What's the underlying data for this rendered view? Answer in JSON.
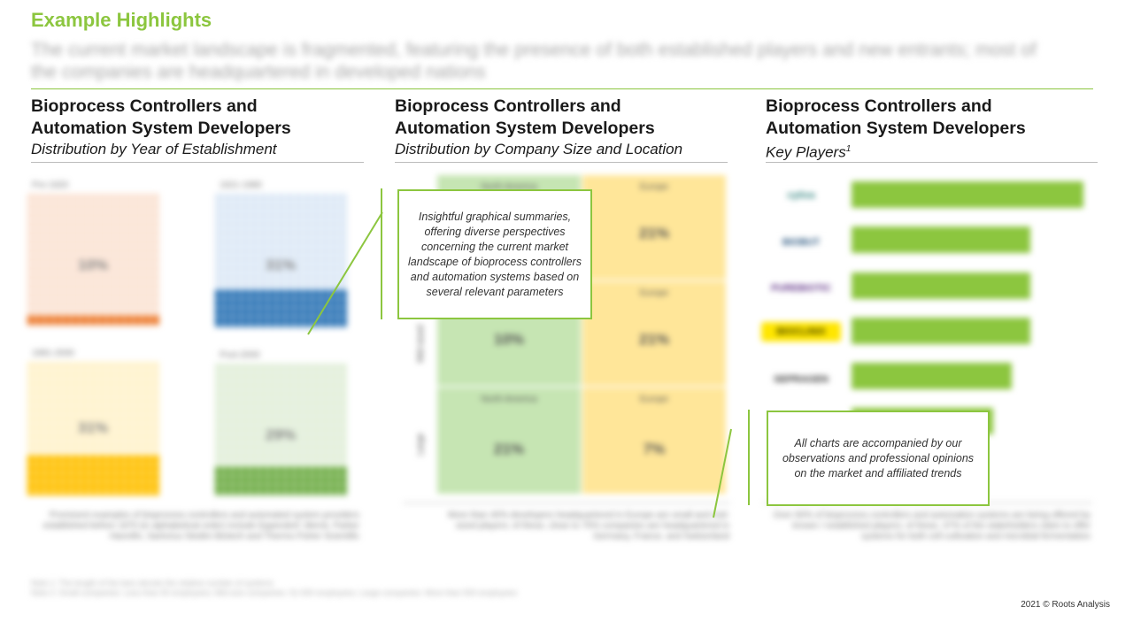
{
  "header": {
    "title": "Example Highlights",
    "subtitle": "The current market landscape is fragmented, featuring the presence of both established players and new entrants; most of the companies are headquartered in developed nations"
  },
  "columns": [
    {
      "heading": "Bioprocess Controllers and Automation System Developers",
      "subheading": "Distribution by Year of Establishment",
      "note": "Prominent examples of bioprocess controllers and automated system providers established before 1970 (in alphabetical order) include Eppendorf, Merck, Parker Hannifin, Sartorius Stedim Biotech and Thermo Fisher Scientific"
    },
    {
      "heading": "Bioprocess Controllers and Automation System Developers",
      "subheading": "Distribution by Company Size and Location",
      "note": "More than 40% developers headquartered in Europe are small and mid-sized players; of these, close to 75% companies are headquartered in Germany, France, and Switzerland"
    },
    {
      "heading": "Bioprocess Controllers and Automation System Developers",
      "subheading": "Key Players",
      "subheading_sup": "1",
      "note": "Over 60% of bioprocess controllers and automation systems are being offered by known / established players; of these, 47% of the stakeholders claim to offer systems for both cell cultivation and microbial fermentation"
    }
  ],
  "waffles": [
    {
      "label": "Pre-1920",
      "value": "10%",
      "bg": "#fbe3d4",
      "fill": "#ed7d31",
      "fill_fraction": 0.08
    },
    {
      "label": "1921-1980",
      "value": "31%",
      "bg": "#dde9f6",
      "fill": "#2e75b6",
      "fill_fraction": 0.28
    },
    {
      "label": "1981-2000",
      "value": "31%",
      "bg": "#fff2cc",
      "fill": "#ffc000",
      "fill_fraction": 0.3
    },
    {
      "label": "Post-2000",
      "value": "29%",
      "bg": "#e2efda",
      "fill": "#70ad47",
      "fill_fraction": 0.22
    }
  ],
  "quadrants": [
    {
      "label": "North America",
      "value": "",
      "bg": "#c6e5b3"
    },
    {
      "label": "Europe",
      "value": "21%",
      "bg": "#ffe699"
    },
    {
      "label": "",
      "value": "10%",
      "bg": "#c6e5b3"
    },
    {
      "label": "Europe",
      "value": "21%",
      "bg": "#ffe699"
    },
    {
      "label": "North America",
      "value": "21%",
      "bg": "#c6e5b3"
    },
    {
      "label": "Europe",
      "value": "7%",
      "bg": "#ffe699"
    }
  ],
  "axis": {
    "mid": "Mid-sized",
    "large": "Large"
  },
  "key_players": [
    {
      "logo": "cytiva",
      "color": "#2a7f7a",
      "bg": "#ffffff",
      "value": 1.0
    },
    {
      "logo": "BIOBUT",
      "color": "#1f4e79",
      "bg": "#ffffff",
      "value": 0.77
    },
    {
      "logo": "PUREBIOTIC",
      "color": "#5b2c83",
      "bg": "#ffffff",
      "value": 0.77
    },
    {
      "logo": "BIOCLINIX",
      "color": "#3a3a00",
      "bg": "#ffe600",
      "value": 0.77
    },
    {
      "logo": "SEPRAGEN",
      "color": "#333333",
      "bg": "#ffffff",
      "value": 0.69
    },
    {
      "logo": "",
      "color": "#2e75b6",
      "bg": "#ffffff",
      "value": 0.61
    }
  ],
  "callouts": {
    "left": "Insightful graphical summaries, offering diverse perspectives concerning the current market landscape of bioprocess controllers and automation systems based on several relevant parameters",
    "right": "All charts are accompanied by our observations and professional opinions on the market and affiliated trends"
  },
  "notes": {
    "n1": "Note 1: The length of the bars denote the relative number of systems",
    "n2": "Note 2: Small companies: Less than 50 employees; Mid-size companies: 51-500 employees; Large companies: More than 500 employees"
  },
  "copyright": "2021 © Roots Analysis"
}
